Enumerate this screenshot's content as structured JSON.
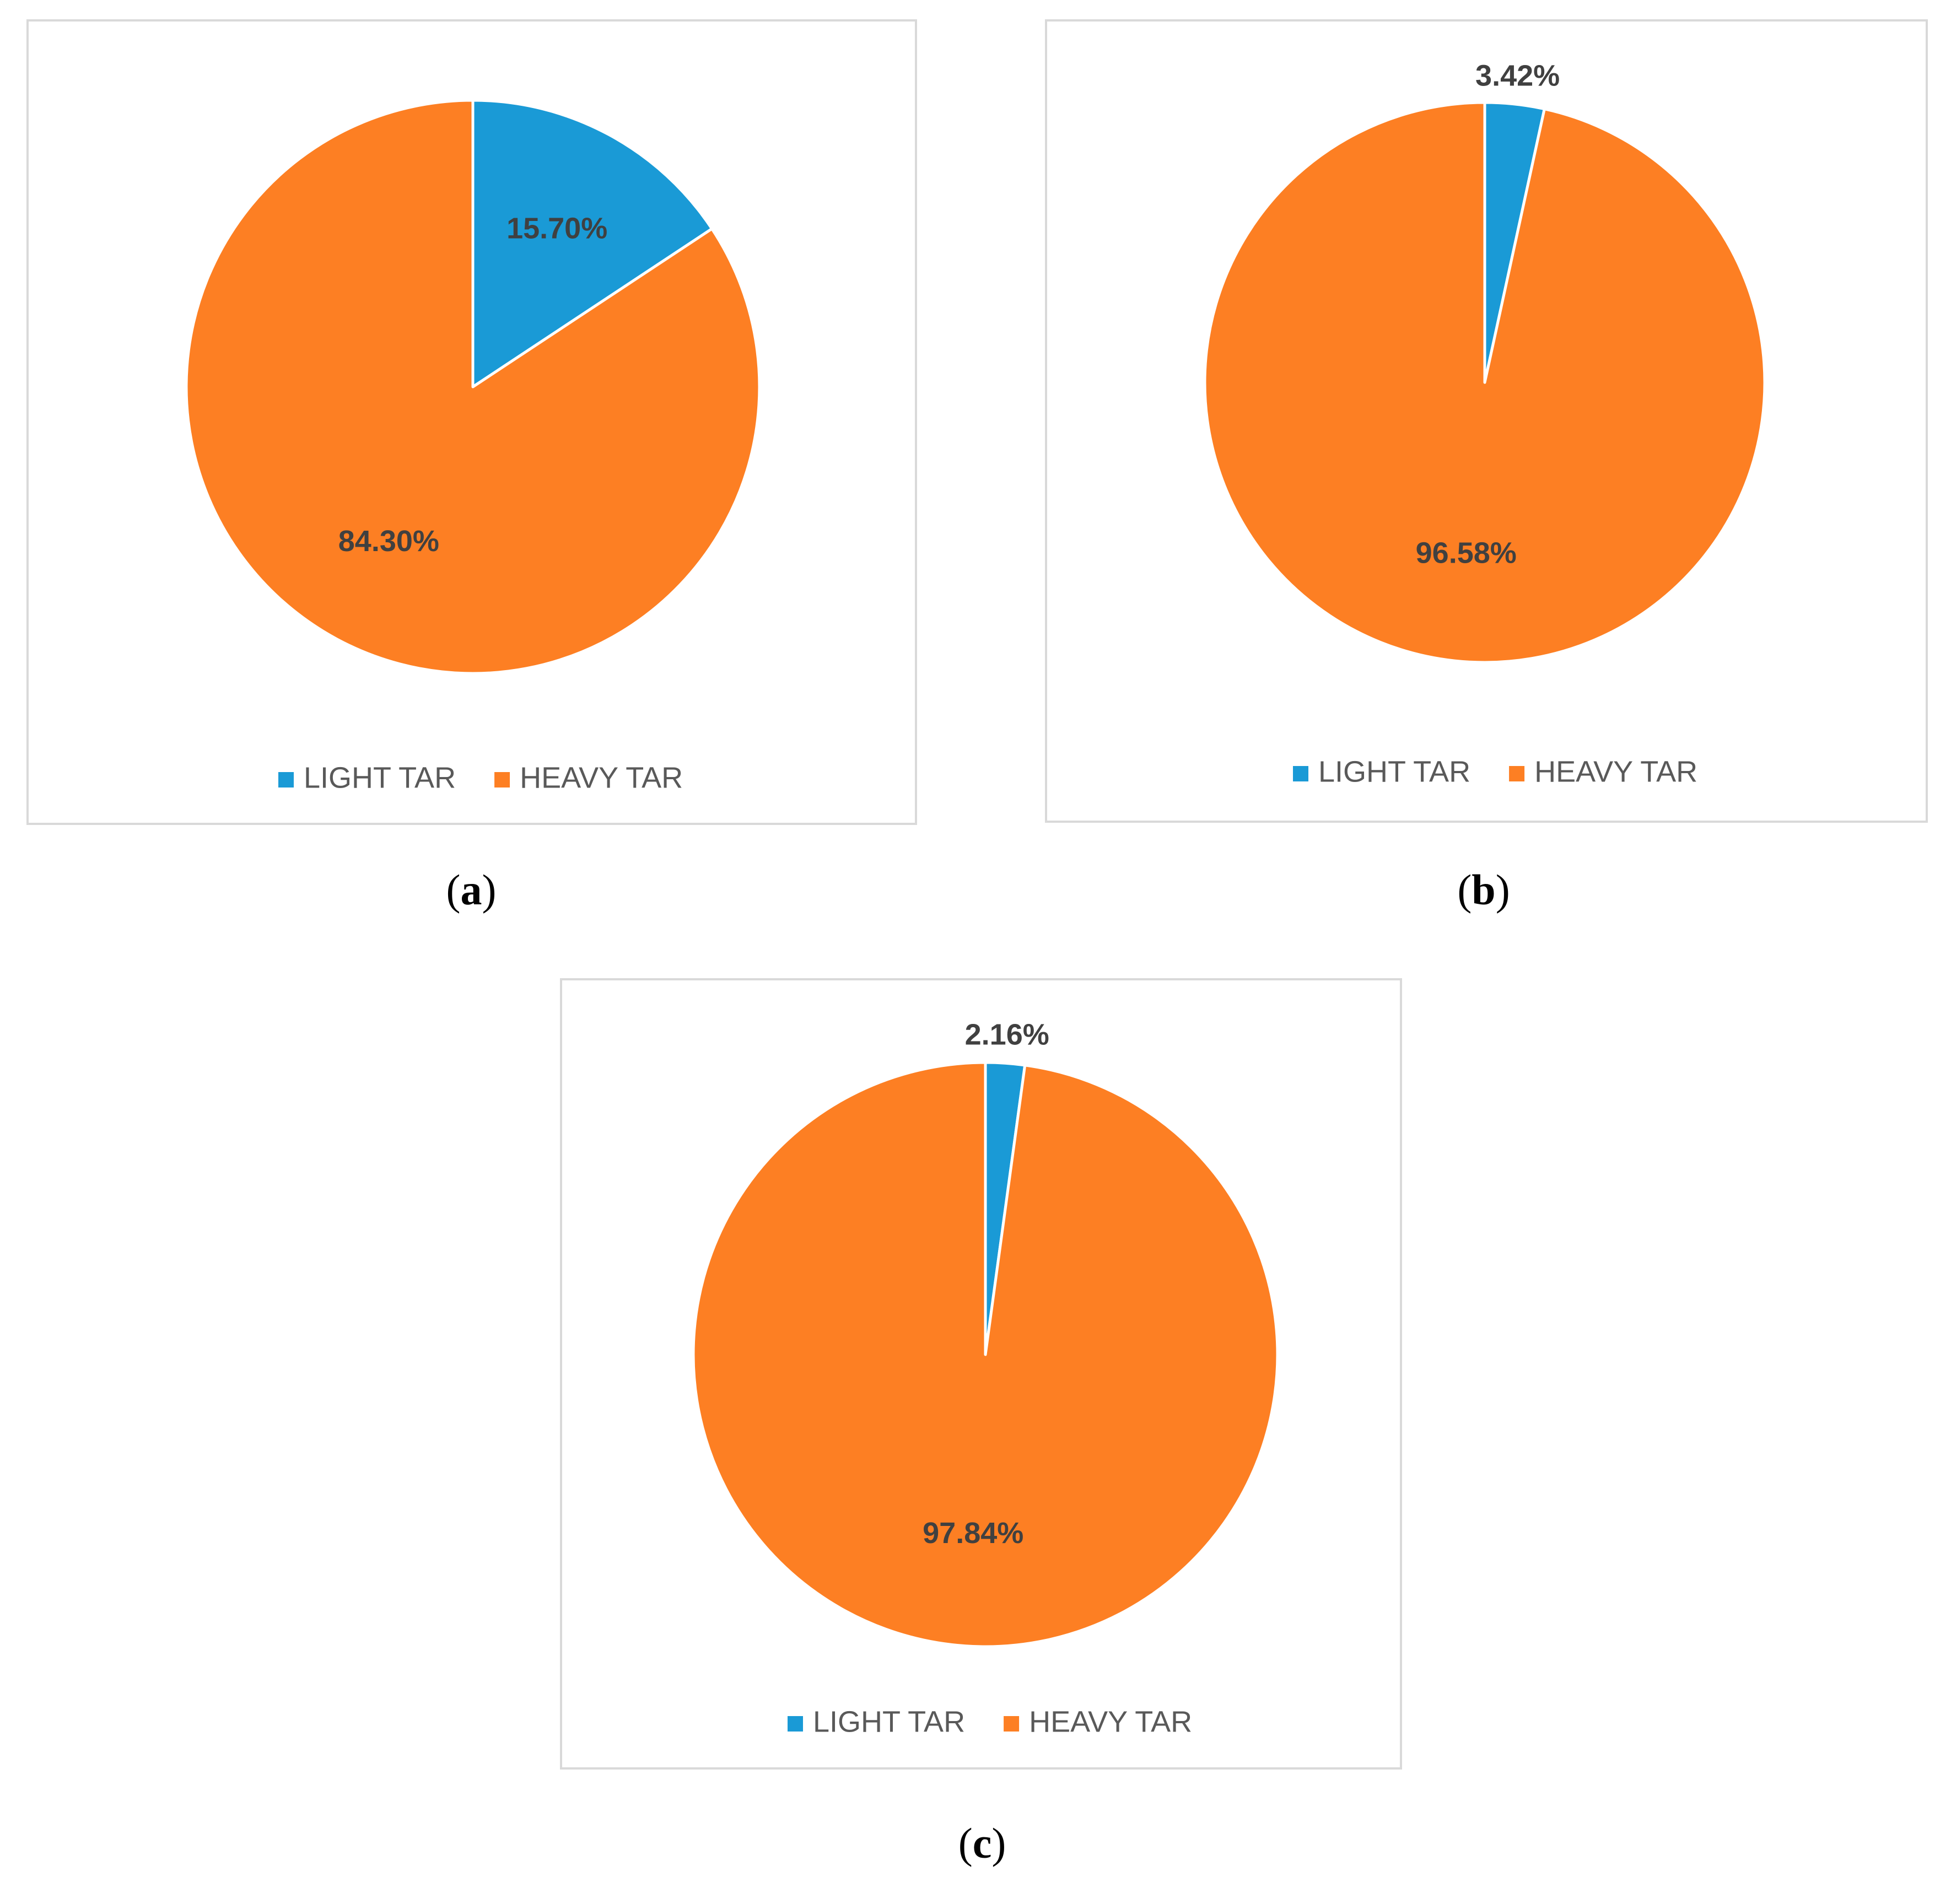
{
  "chart_data": [
    {
      "type": "pie",
      "panel_label": "a",
      "categories": [
        "LIGHT TAR",
        "HEAVY TAR"
      ],
      "values": [
        15.7,
        84.3
      ],
      "labels": [
        "15.70%",
        "84.30%"
      ],
      "colors": [
        "#1a9ad6",
        "#fd7f23"
      ],
      "legend": "bottom"
    },
    {
      "type": "pie",
      "panel_label": "b",
      "categories": [
        "LIGHT TAR",
        "HEAVY TAR"
      ],
      "values": [
        3.42,
        96.58
      ],
      "labels": [
        "3.42%",
        "96.58%"
      ],
      "colors": [
        "#1a9ad6",
        "#fd7f23"
      ],
      "legend": "bottom"
    },
    {
      "type": "pie",
      "panel_label": "c",
      "categories": [
        "LIGHT TAR",
        "HEAVY TAR"
      ],
      "values": [
        2.16,
        97.84
      ],
      "labels": [
        "2.16%",
        "97.84%"
      ],
      "colors": [
        "#1a9ad6",
        "#fd7f23"
      ],
      "legend": "bottom"
    }
  ]
}
